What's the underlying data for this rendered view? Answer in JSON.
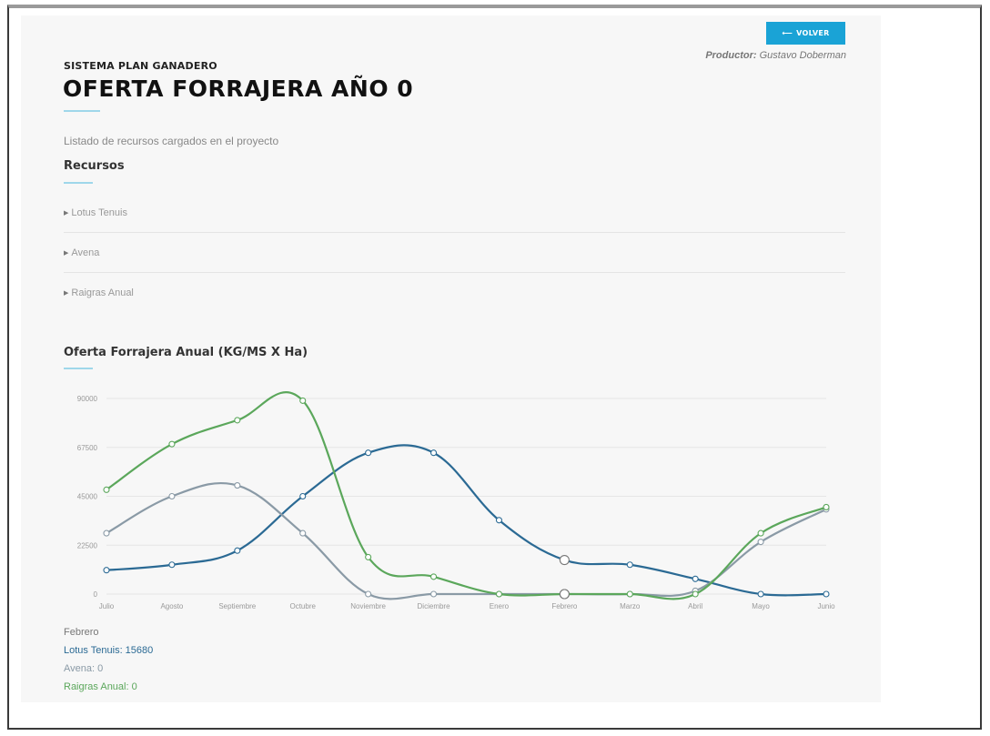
{
  "header": {
    "back_button": "VOLVER",
    "productor_label": "Productor:",
    "productor_name": "Gustavo Doberman",
    "system_name": "SISTEMA PLAN GANADERO",
    "page_title": "OFERTA FORRAJERA AÑO 0"
  },
  "resources": {
    "description": "Listado de recursos cargados en el proyecto",
    "heading": "Recursos",
    "items": [
      {
        "label": "Lotus Tenuis"
      },
      {
        "label": "Avena"
      },
      {
        "label": "Raigras Anual"
      }
    ]
  },
  "chart_heading": "Oferta Forrajera Anual (KG/MS X Ha)",
  "chart_data": {
    "type": "line",
    "title": "Oferta Forrajera Anual (KG/MS X Ha)",
    "xlabel": "",
    "ylabel": "",
    "categories": [
      "Julio",
      "Agosto",
      "Septiembre",
      "Octubre",
      "Noviembre",
      "Diciembre",
      "Enero",
      "Febrero",
      "Marzo",
      "Abril",
      "Mayo",
      "Junio"
    ],
    "yticks": [
      "0",
      "22500",
      "45000",
      "67500",
      "90000"
    ],
    "ylim": [
      0,
      90000
    ],
    "grid": true,
    "series": [
      {
        "name": "Lotus Tenuis",
        "color": "#2b6a94",
        "values": [
          11000,
          13500,
          20000,
          45000,
          65000,
          65000,
          34000,
          15680,
          13500,
          7000,
          0,
          0
        ]
      },
      {
        "name": "Avena",
        "color": "#8a9aa6",
        "values": [
          28000,
          45000,
          50000,
          28000,
          0,
          0,
          0,
          0,
          0,
          1500,
          24000,
          39000
        ]
      },
      {
        "name": "Raigras Anual",
        "color": "#5ba75b",
        "values": [
          48000,
          69000,
          80000,
          89000,
          17000,
          8000,
          0,
          0,
          0,
          0,
          28000,
          40000
        ]
      }
    ],
    "hover_index": 7
  },
  "tooltip": {
    "title": "Febrero",
    "rows": [
      {
        "label": "Lotus Tenuis: 15680",
        "color": "#2b6a94"
      },
      {
        "label": "Avena: 0",
        "color": "#8a9aa6"
      },
      {
        "label": "Raigras Anual: 0",
        "color": "#5ba75b"
      }
    ]
  },
  "icons": {
    "back": "arrow-left-icon",
    "expand": "caret-right-icon"
  }
}
